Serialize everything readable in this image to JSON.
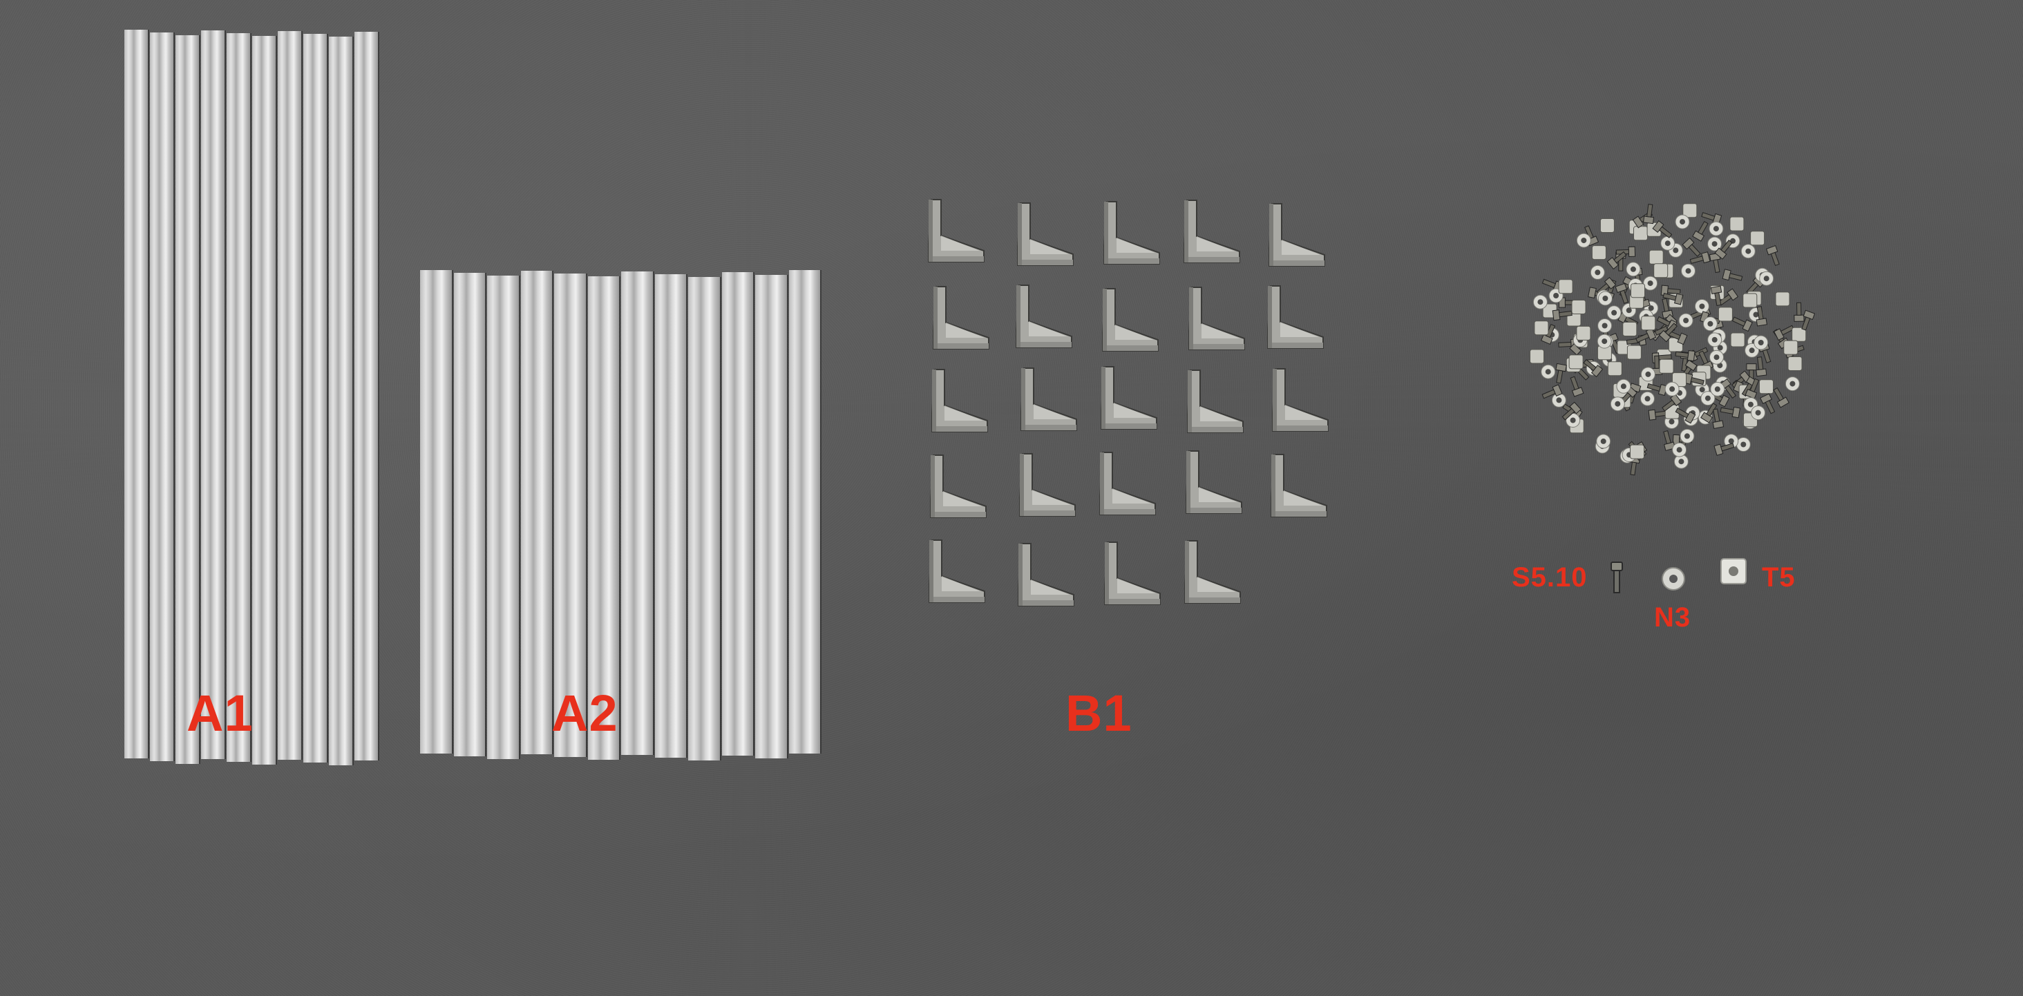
{
  "labels": {
    "a1": "A1",
    "a2": "A2",
    "b1": "B1",
    "s5_10": "S5.10",
    "n3": "N3",
    "t5": "T5"
  },
  "colors": {
    "label": "#e8301c",
    "background": "#585858",
    "aluminum": "#cfcfcf"
  },
  "counts": {
    "a1_rails": 10,
    "a2_rails": 12,
    "b1_brackets": 24
  }
}
